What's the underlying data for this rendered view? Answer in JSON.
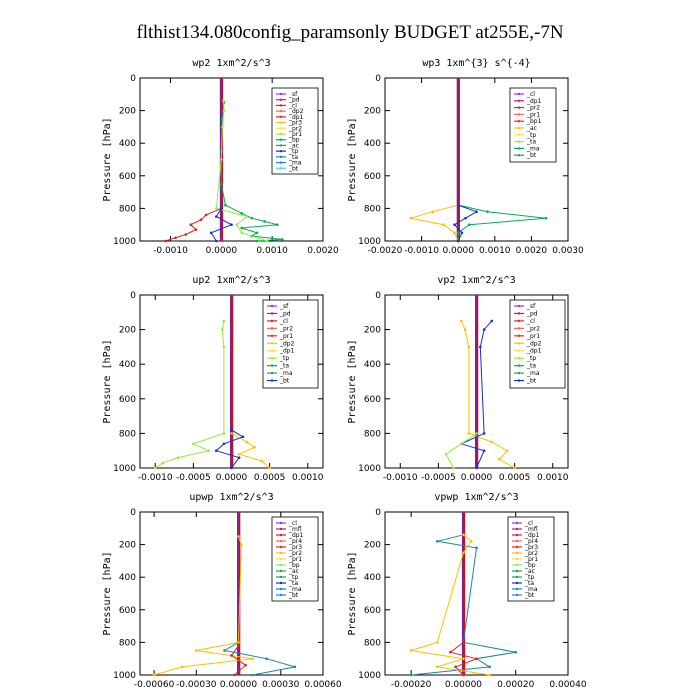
{
  "title": "flthist134.080config_paramsonly  BUDGET at255E,-7N",
  "chart_data": [
    {
      "type": "line",
      "title": "wp2   1xm^2/s^3",
      "ylabel": "Pressure [hPa]",
      "xlim": [
        -0.0016,
        0.002
      ],
      "ylim": [
        1000,
        0
      ],
      "xticks": [
        -0.001,
        0.0,
        0.001,
        0.002
      ],
      "xticklabels": [
        "-0.0010",
        "0.0000",
        "0.0010",
        "0.0020"
      ],
      "yticks": [
        0,
        200,
        400,
        600,
        800,
        1000
      ],
      "legend": [
        "_sf",
        "_pd",
        "_cl",
        "_dp2",
        "_dp1",
        "_pr3",
        "_pr2",
        "_pr1",
        "_bp",
        "_ac",
        "_tp",
        "_ta",
        "_ma",
        "_bt"
      ],
      "series": [
        {
          "name": "_dp1",
          "color": "#00b050",
          "pressure": [
            150,
            250,
            450,
            650,
            780,
            830,
            860,
            880,
            900,
            920,
            950,
            970,
            990,
            1000
          ],
          "values": [
            5e-05,
            2e-05,
            0.0,
            0.0,
            8e-05,
            0.0004,
            0.0006,
            0.00085,
            0.0011,
            0.0004,
            0.0007,
            0.0006,
            0.0012,
            0.0007
          ]
        },
        {
          "name": "_pr1",
          "color": "#90ee40",
          "pressure": [
            140,
            200,
            300,
            500,
            800,
            850,
            900,
            950,
            1000
          ],
          "values": [
            4e-05,
            5e-05,
            2e-05,
            0.0,
            -0.0001,
            0.0005,
            0.0003,
            0.0004,
            0.0009
          ]
        },
        {
          "name": "_dp2",
          "color": "#e02020",
          "pressure": [
            800,
            840,
            870,
            900,
            930,
            960,
            980,
            1000
          ],
          "values": [
            0.0,
            -0.0003,
            -0.0004,
            -0.0006,
            -0.0005,
            -0.0007,
            -0.0009,
            -0.0011
          ]
        },
        {
          "name": "_ta",
          "color": "#1030d0",
          "pressure": [
            800,
            850,
            900,
            950,
            1000
          ],
          "values": [
            0.0,
            -0.0001,
            0.0002,
            -0.0002,
            -0.0001
          ]
        }
      ]
    },
    {
      "type": "line",
      "title": "wp3   1xm^{3} s^{-4}",
      "ylabel": "Pressure [hPa]",
      "xlim": [
        -0.002,
        0.003
      ],
      "ylim": [
        1000,
        0
      ],
      "xticks": [
        -0.002,
        -0.001,
        0.0,
        0.001,
        0.002,
        0.003
      ],
      "xticklabels": [
        "-0.0020",
        "-0.0010",
        "0.0000",
        "0.0010",
        "0.0020",
        "0.0030"
      ],
      "yticks": [
        0,
        200,
        400,
        600,
        800,
        1000
      ],
      "legend": [
        "_cl",
        "_dp1",
        "_pr2",
        "_pr1",
        "_bp1",
        "_ac",
        "_tp",
        "_ta",
        "_ma",
        "_bt"
      ],
      "series": [
        {
          "name": "_ac",
          "color": "#00b050",
          "pressure": [
            780,
            820,
            860,
            900,
            950,
            1000
          ],
          "values": [
            0.0,
            0.0008,
            0.0024,
            0.0003,
            0.0,
            0.0
          ]
        },
        {
          "name": "_pr2",
          "color": "#ffc000",
          "pressure": [
            780,
            820,
            860,
            900,
            950,
            1000
          ],
          "values": [
            0.0,
            -0.0007,
            -0.0013,
            -0.0004,
            -0.0001,
            0.0
          ]
        },
        {
          "name": "_ta",
          "color": "#1030d0",
          "pressure": [
            780,
            820,
            860,
            900,
            950,
            1000
          ],
          "values": [
            0.0,
            0.0005,
            0.0002,
            -0.0001,
            0.0001,
            0.0
          ]
        }
      ]
    },
    {
      "type": "line",
      "title": "up2   1xm^2/s^3",
      "ylabel": "Pressure [hPa]",
      "xlim": [
        -0.0012,
        0.0012
      ],
      "ylim": [
        1000,
        0
      ],
      "xticks": [
        -0.001,
        -0.0005,
        0.0,
        0.0005,
        0.001
      ],
      "xticklabels": [
        "-0.0010",
        "-0.0005",
        "0.0000",
        "0.0005",
        "0.0010"
      ],
      "yticks": [
        0,
        200,
        400,
        600,
        800,
        1000
      ],
      "legend": [
        "_sf",
        "_pd",
        "_cl",
        "_pr2",
        "_pr1",
        "_dp2",
        "_dp1",
        "_tp",
        "_ta",
        "_ma",
        "_bt"
      ],
      "series": [
        {
          "name": "_dp1",
          "color": "#90ee40",
          "pressure": [
            150,
            200,
            300,
            800,
            860,
            900,
            940,
            970,
            1000
          ],
          "values": [
            -0.0001,
            -0.00012,
            -0.0001,
            -0.0001,
            -0.0005,
            -0.0003,
            -0.0007,
            -0.0009,
            -0.001
          ]
        },
        {
          "name": "_pr2",
          "color": "#ffc000",
          "pressure": [
            800,
            850,
            880,
            920,
            960,
            1000
          ],
          "values": [
            0.0,
            0.0002,
            0.0003,
            0.0001,
            0.0004,
            0.0005
          ]
        },
        {
          "name": "_ta",
          "color": "#1030d0",
          "pressure": [
            780,
            820,
            860,
            900,
            940,
            1000
          ],
          "values": [
            0.0,
            0.00015,
            -0.0001,
            -0.0002,
            0.0001,
            0.0
          ]
        }
      ]
    },
    {
      "type": "line",
      "title": "vp2   1xm^2/s^3",
      "ylabel": "Pressure [hPa]",
      "xlim": [
        -0.0012,
        0.0012
      ],
      "ylim": [
        1000,
        0
      ],
      "xticks": [
        -0.001,
        -0.0005,
        0.0,
        0.0005,
        0.001
      ],
      "xticklabels": [
        "-0.0010",
        "-0.0005",
        "0.0000",
        "0.0005",
        "0.0010"
      ],
      "yticks": [
        0,
        200,
        400,
        600,
        800,
        1000
      ],
      "legend": [
        "_sf",
        "_pd",
        "_cl",
        "_pr2",
        "_pr1",
        "_dp2",
        "_dp1",
        "_tp",
        "_ta",
        "_ma",
        "_bt"
      ],
      "series": [
        {
          "name": "_pr2",
          "color": "#ffc000",
          "pressure": [
            150,
            200,
            300,
            800,
            850,
            900,
            950,
            1000
          ],
          "values": [
            -0.0002,
            -0.00015,
            -0.0001,
            -0.0001,
            0.0002,
            0.0004,
            0.0003,
            0.0005
          ]
        },
        {
          "name": "_ta",
          "color": "#1030d0",
          "pressure": [
            150,
            200,
            300,
            800,
            860,
            900,
            1000
          ],
          "values": [
            0.0002,
            0.0001,
            5e-05,
            0.0001,
            -0.0002,
            0.0001,
            0.0
          ]
        },
        {
          "name": "_dp1",
          "color": "#90ee40",
          "pressure": [
            800,
            860,
            920,
            1000
          ],
          "values": [
            0.0,
            -0.0002,
            -0.0004,
            -0.0003
          ]
        }
      ]
    },
    {
      "type": "line",
      "title": "upwp   1xm^2/s^3",
      "ylabel": "Pressure [hPa]",
      "xlim": [
        -0.0007,
        0.0006
      ],
      "ylim": [
        1000,
        0
      ],
      "xticks": [
        -0.0006,
        -0.0003,
        0.0,
        0.0003,
        0.0006
      ],
      "xticklabels": [
        "-0.00060",
        "-0.00030",
        "0.00000",
        "0.00030",
        "0.00060"
      ],
      "yticks": [
        0,
        200,
        400,
        600,
        800,
        1000
      ],
      "legend": [
        "_cl",
        "_mfl",
        "_dp1",
        "_pr4",
        "_pr3",
        "_pr2",
        "_pr1",
        "_bp",
        "_ac",
        "_tp",
        "_ta",
        "_ma",
        "_bt"
      ],
      "series": [
        {
          "name": "_ta",
          "color": "#1a8aa0",
          "pressure": [
            800,
            850,
            900,
            950,
            1000
          ],
          "values": [
            0.0,
            -0.0001,
            0.0002,
            0.0004,
            0.0001
          ]
        },
        {
          "name": "_pr1",
          "color": "#ffc000",
          "pressure": [
            150,
            200,
            800,
            850,
            900,
            950,
            1000
          ],
          "values": [
            0.0,
            2e-05,
            0.0,
            -0.0003,
            0.0001,
            -0.0004,
            -0.0006
          ]
        },
        {
          "name": "_dp1",
          "color": "#e02020",
          "pressure": [
            820,
            880,
            940,
            1000
          ],
          "values": [
            0.0,
            -5e-05,
            5e-05,
            -3e-05
          ]
        }
      ]
    },
    {
      "type": "line",
      "title": "vpwp   1xm^2/s^3",
      "ylabel": "Pressure [hPa]",
      "xlim": [
        -0.0003,
        0.0004
      ],
      "ylim": [
        1000,
        0
      ],
      "xticks": [
        -0.0002,
        0.0,
        0.0002,
        0.0004
      ],
      "xticklabels": [
        "-0.00020",
        "0.00000",
        "0.00020",
        "0.00040"
      ],
      "yticks": [
        0,
        200,
        400,
        600,
        800,
        1000
      ],
      "legend": [
        "_cl",
        "_mfl",
        "_dp1",
        "_pr4",
        "_pr3",
        "_pr2",
        "_pr1",
        "_bp",
        "_ac",
        "_tp",
        "_ta",
        "_ma",
        "_bt"
      ],
      "series": [
        {
          "name": "_ta",
          "color": "#1a8aa0",
          "pressure": [
            140,
            180,
            220,
            800,
            860,
            900,
            950,
            1000
          ],
          "values": [
            0.0,
            -0.0001,
            5e-05,
            0.0,
            0.0002,
            5e-05,
            0.0001,
            -0.0002
          ]
        },
        {
          "name": "_pr1",
          "color": "#ffc000",
          "pressure": [
            140,
            180,
            250,
            800,
            850,
            900,
            950,
            1000
          ],
          "values": [
            0.0,
            3e-05,
            0.0,
            -0.0001,
            -0.0002,
            0.0,
            -0.0001,
            0.0001
          ]
        },
        {
          "name": "_dp1",
          "color": "#e02020",
          "pressure": [
            800,
            860,
            900,
            950,
            1000
          ],
          "values": [
            0.0,
            -5e-05,
            5e-05,
            -3e-05,
            0.0
          ]
        }
      ]
    }
  ]
}
